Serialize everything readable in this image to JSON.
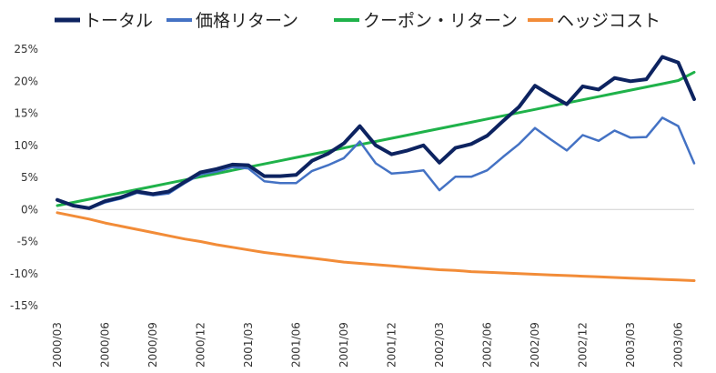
{
  "chart_data": {
    "type": "line",
    "title": "",
    "xlabel": "",
    "ylabel": "",
    "ylim": [
      -15,
      25
    ],
    "y_tick_labels": [
      "25%",
      "20%",
      "15%",
      "10%",
      "5%",
      "0%",
      "-5%",
      "-10%",
      "-15%"
    ],
    "y_tick_values": [
      25,
      20,
      15,
      10,
      5,
      0,
      -5,
      -10,
      -15
    ],
    "x_tick_labels": [
      "2000/03",
      "2000/06",
      "2000/09",
      "2000/12",
      "2001/03",
      "2001/06",
      "2001/09",
      "2001/12",
      "2002/03",
      "2002/06",
      "2002/09",
      "2002/12",
      "2003/03",
      "2003/06"
    ],
    "x_tick_indices": [
      0,
      3,
      6,
      9,
      12,
      15,
      18,
      21,
      24,
      27,
      30,
      33,
      36,
      39
    ],
    "x_count": 41,
    "legend_position": "top",
    "series": [
      {
        "name": "トータル",
        "color": "#0d2360",
        "values": [
          1.5,
          0.6,
          0.2,
          1.3,
          1.9,
          2.8,
          2.4,
          2.8,
          4.3,
          5.8,
          6.3,
          7.0,
          6.9,
          5.2,
          5.2,
          5.4,
          7.6,
          8.7,
          10.3,
          13.0,
          10.0,
          8.6,
          9.2,
          10.0,
          7.3,
          9.6,
          10.2,
          11.5,
          13.8,
          16.0,
          19.3,
          17.8,
          16.4,
          19.2,
          18.7,
          20.5,
          20.0,
          20.3,
          23.8,
          22.9,
          17.2
        ]
      },
      {
        "name": "価格リターン",
        "color": "#4472c4",
        "values": [
          1.6,
          0.5,
          0.1,
          1.1,
          1.7,
          2.6,
          2.2,
          2.5,
          4.1,
          5.5,
          5.9,
          6.6,
          6.4,
          4.4,
          4.1,
          4.1,
          6.0,
          6.9,
          8.0,
          10.6,
          7.2,
          5.6,
          5.8,
          6.1,
          3.0,
          5.1,
          5.1,
          6.1,
          8.2,
          10.2,
          12.7,
          10.9,
          9.2,
          11.6,
          10.7,
          12.3,
          11.2,
          11.3,
          14.3,
          13.0,
          7.2
        ]
      },
      {
        "name": "クーポン・リターン",
        "color": "#1fb24a",
        "values": [
          0.6,
          1.1,
          1.6,
          2.1,
          2.6,
          3.1,
          3.6,
          4.1,
          4.6,
          5.1,
          5.6,
          6.1,
          6.6,
          7.1,
          7.6,
          8.1,
          8.6,
          9.1,
          9.6,
          10.1,
          10.6,
          11.1,
          11.6,
          12.1,
          12.6,
          13.1,
          13.6,
          14.1,
          14.6,
          15.1,
          15.6,
          16.1,
          16.6,
          17.1,
          17.6,
          18.1,
          18.6,
          19.1,
          19.6,
          20.1,
          21.4
        ]
      },
      {
        "name": "ヘッジコスト",
        "color": "#f28c38",
        "values": [
          -0.5,
          -1.0,
          -1.5,
          -2.1,
          -2.6,
          -3.1,
          -3.6,
          -4.1,
          -4.6,
          -5.0,
          -5.5,
          -5.9,
          -6.3,
          -6.7,
          -7.0,
          -7.3,
          -7.6,
          -7.9,
          -8.2,
          -8.4,
          -8.6,
          -8.8,
          -9.0,
          -9.2,
          -9.4,
          -9.5,
          -9.7,
          -9.8,
          -9.9,
          -10.0,
          -10.1,
          -10.2,
          -10.3,
          -10.4,
          -10.5,
          -10.6,
          -10.7,
          -10.8,
          -10.9,
          -11.0,
          -11.1
        ]
      }
    ]
  }
}
